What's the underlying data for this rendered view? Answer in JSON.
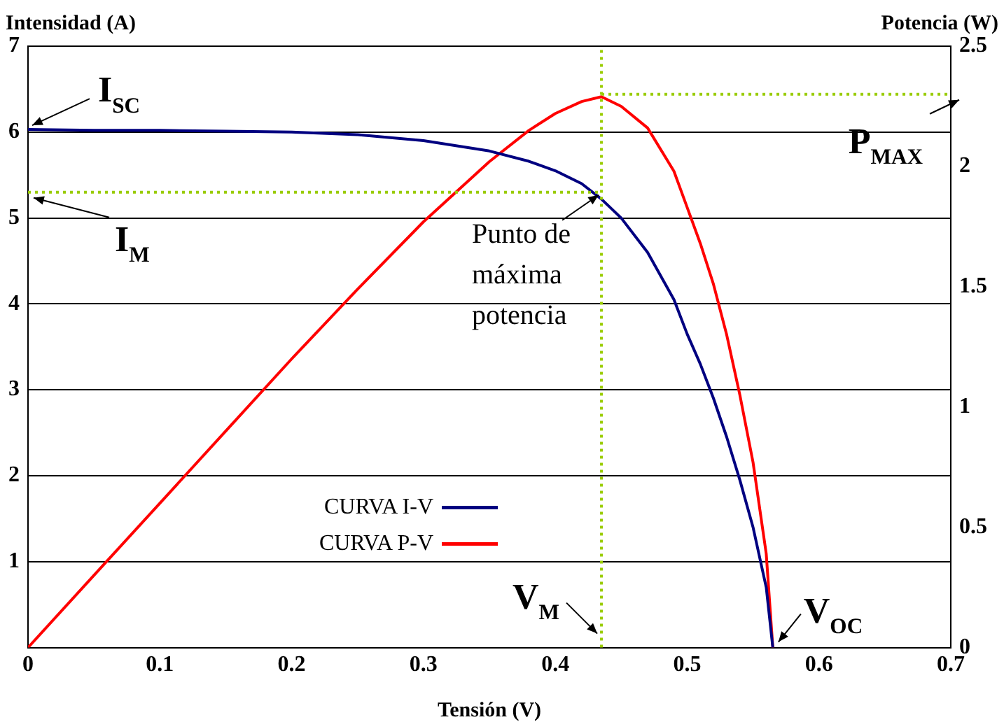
{
  "chart_data": {
    "type": "line",
    "xlabel": "Tensión (V)",
    "ylabel": "Intensidad (A)",
    "y2label": "Potencia (W)",
    "xlim": [
      0,
      0.7
    ],
    "xticks": [
      0,
      0.1,
      0.2,
      0.3,
      0.4,
      0.5,
      0.6,
      0.7
    ],
    "ylim": [
      0,
      7
    ],
    "yticks": [
      1,
      2,
      3,
      4,
      5,
      6,
      7
    ],
    "y2lim": [
      0,
      2.5
    ],
    "y2ticks": [
      0,
      0.5,
      1,
      1.5,
      2,
      2.5
    ],
    "grid": "y",
    "legend": "bottom",
    "marker": "none",
    "line_style": "solid",
    "x": [
      0,
      0.05,
      0.1,
      0.15,
      0.2,
      0.25,
      0.3,
      0.35,
      0.38,
      0.4,
      0.42,
      0.435,
      0.45,
      0.47,
      0.49,
      0.5,
      0.51,
      0.52,
      0.53,
      0.54,
      0.55,
      0.56,
      0.565
    ],
    "series": [
      {
        "name": "CURVA I-V",
        "color": "#000080",
        "values": [
          6.03,
          6.02,
          6.02,
          6.01,
          6.0,
          5.97,
          5.9,
          5.78,
          5.66,
          5.55,
          5.4,
          5.22,
          5.0,
          4.6,
          4.05,
          3.65,
          3.3,
          2.9,
          2.45,
          1.95,
          1.4,
          0.7,
          0
        ]
      },
      {
        "name": "CURVA P-V",
        "color": "#ff0000",
        "axis": "y2",
        "values": [
          0,
          0.3,
          0.6,
          0.9,
          1.2,
          1.49,
          1.77,
          2.02,
          2.15,
          2.22,
          2.27,
          2.29,
          2.25,
          2.16,
          1.98,
          1.83,
          1.68,
          1.51,
          1.3,
          1.05,
          0.77,
          0.39,
          0
        ]
      }
    ],
    "ref_lines": [
      {
        "axis": "y",
        "value": 5.3,
        "label": "I$_{M}$",
        "color": "#99cc00",
        "line_style": "dotted"
      },
      {
        "axis": "x",
        "value": 0.435,
        "label": "V$_{M}$",
        "color": "#99cc00",
        "line_style": "dotted"
      },
      {
        "axis": "y2",
        "value": 2.3,
        "label": "P$_{MAX}$",
        "color": "#99cc00",
        "line_style": "dotted"
      }
    ],
    "annotations": [
      {
        "text": "I$_{SC}$",
        "x": 0,
        "y": 6.03
      },
      {
        "text": "V$_{OC}$",
        "x": 0.565,
        "y": 0
      },
      {
        "text": "Punto de\nmáxima\npotencia",
        "x": 0.435,
        "y": 5.3
      }
    ]
  }
}
